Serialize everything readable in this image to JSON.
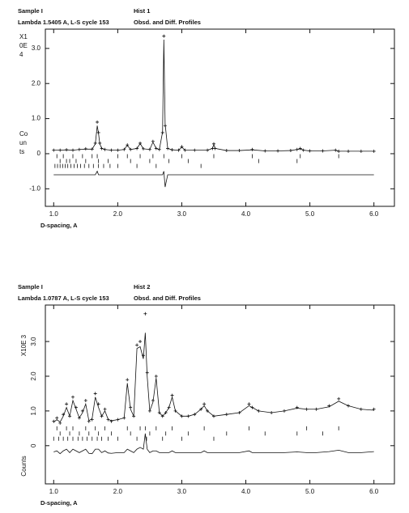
{
  "chart_data": [
    {
      "type": "rietveld",
      "sample": "Sample I",
      "hist": "Hist  1",
      "lambda": "Lambda 1.5405 A, L-S cycle  153",
      "title": "Obsd. and Diff. Profiles",
      "x_label": "D-spacing, A",
      "y_label": [
        "X1",
        "0E",
        "4"
      ],
      "y_label2": [
        "Co",
        "un",
        "ts"
      ],
      "y_label_rotated": false,
      "xlim": [
        0.87,
        6.32
      ],
      "ylim": [
        -1.5,
        3.55
      ],
      "xticks": [
        {
          "value": 1,
          "label": "1.0"
        },
        {
          "value": 2,
          "label": "2.0"
        },
        {
          "value": 3,
          "label": "3.0"
        },
        {
          "value": 4,
          "label": "4.0"
        },
        {
          "value": 5,
          "label": "5.0"
        },
        {
          "value": 6,
          "label": "6.0"
        }
      ],
      "yticks": [
        {
          "value": -1,
          "label": "-1.0"
        },
        0,
        {
          "value": 1,
          "label": "1.0"
        },
        {
          "value": 2,
          "label": "2.0"
        },
        {
          "value": 3,
          "label": "3.0"
        }
      ],
      "color": "#111111",
      "x": [
        1.0,
        1.1,
        1.2,
        1.3,
        1.4,
        1.5,
        1.6,
        1.65,
        1.68,
        1.7,
        1.72,
        1.75,
        1.8,
        1.9,
        2.0,
        2.1,
        2.15,
        2.2,
        2.3,
        2.35,
        2.4,
        2.5,
        2.55,
        2.6,
        2.65,
        2.7,
        2.72,
        2.74,
        2.78,
        2.85,
        2.95,
        3.0,
        3.05,
        3.2,
        3.4,
        3.48,
        3.5,
        3.52,
        3.7,
        3.9,
        4.1,
        4.3,
        4.5,
        4.7,
        4.8,
        4.85,
        4.9,
        5.0,
        5.2,
        5.4,
        5.45,
        5.6,
        5.8,
        6.0
      ],
      "series": [
        {
          "style": "plus",
          "values": [
            0.1,
            0.1,
            0.11,
            0.1,
            0.12,
            0.14,
            0.13,
            0.3,
            0.9,
            0.6,
            0.3,
            0.15,
            0.12,
            0.1,
            0.1,
            0.12,
            0.25,
            0.12,
            0.15,
            0.3,
            0.14,
            0.12,
            0.35,
            0.15,
            0.12,
            0.6,
            3.35,
            0.8,
            0.15,
            0.11,
            0.1,
            0.2,
            0.1,
            0.1,
            0.1,
            0.15,
            0.28,
            0.15,
            0.09,
            0.09,
            0.12,
            0.08,
            0.08,
            0.09,
            0.12,
            0.15,
            0.1,
            0.08,
            0.08,
            0.1,
            0.07,
            0.07,
            0.07,
            0.07
          ]
        },
        {
          "style": "line",
          "values": [
            0.1,
            0.1,
            0.11,
            0.1,
            0.12,
            0.13,
            0.13,
            0.28,
            0.8,
            0.58,
            0.28,
            0.15,
            0.12,
            0.1,
            0.1,
            0.12,
            0.24,
            0.12,
            0.15,
            0.29,
            0.14,
            0.12,
            0.33,
            0.15,
            0.12,
            0.62,
            3.25,
            0.85,
            0.15,
            0.11,
            0.1,
            0.19,
            0.1,
            0.1,
            0.1,
            0.15,
            0.27,
            0.15,
            0.09,
            0.09,
            0.11,
            0.08,
            0.08,
            0.09,
            0.12,
            0.14,
            0.1,
            0.08,
            0.08,
            0.1,
            0.07,
            0.07,
            0.07,
            0.07
          ]
        },
        {
          "style": "line",
          "values": [
            -0.6,
            -0.6,
            -0.6,
            -0.6,
            -0.6,
            -0.6,
            -0.6,
            -0.6,
            -0.5,
            -0.6,
            -0.6,
            -0.6,
            -0.6,
            -0.6,
            -0.6,
            -0.6,
            -0.6,
            -0.6,
            -0.6,
            -0.6,
            -0.6,
            -0.6,
            -0.6,
            -0.6,
            -0.6,
            -0.6,
            -0.5,
            -0.95,
            -0.6,
            -0.6,
            -0.6,
            -0.6,
            -0.6,
            -0.6,
            -0.6,
            -0.6,
            -0.6,
            -0.6,
            -0.6,
            -0.6,
            -0.6,
            -0.6,
            -0.6,
            -0.6,
            -0.6,
            -0.6,
            -0.6,
            -0.6,
            -0.6,
            -0.6,
            -0.6,
            -0.6,
            -0.6,
            -0.6
          ]
        }
      ],
      "reflections": [
        {
          "level": -0.07,
          "positions": [
            1.05,
            1.15,
            1.3,
            1.45,
            1.6,
            1.68,
            2.0,
            2.15,
            2.35,
            2.55,
            2.72,
            3.0,
            3.5,
            4.1,
            4.85,
            5.45
          ]
        },
        {
          "level": -0.21,
          "positions": [
            1.1,
            1.2,
            1.25,
            1.35,
            1.5,
            1.7,
            1.85,
            2.2,
            2.5,
            2.8,
            3.1,
            4.2,
            4.8
          ]
        },
        {
          "level": -0.35,
          "positions": [
            1.02,
            1.06,
            1.1,
            1.14,
            1.18,
            1.22,
            1.27,
            1.32,
            1.37,
            1.42,
            1.48,
            1.55,
            1.62,
            1.7,
            1.78,
            1.88,
            2.0,
            2.3,
            2.6,
            3.3
          ]
        }
      ]
    },
    {
      "type": "rietveld",
      "sample": "Sample I",
      "hist": "Hist  2",
      "lambda": "Lambda 1.0787 A, L-S cycle  153",
      "title": "Obsd. and Diff. Profiles",
      "x_label": "D-spacing, A",
      "y_label": [
        "X10E 3"
      ],
      "y_label2": [
        "Counts"
      ],
      "y_label_rotated": true,
      "xlim": [
        0.87,
        6.32
      ],
      "ylim": [
        -1.1,
        4.05
      ],
      "xticks": [
        {
          "value": 1,
          "label": "1.0"
        },
        {
          "value": 2,
          "label": "2.0"
        },
        {
          "value": 3,
          "label": "3.0"
        },
        {
          "value": 4,
          "label": "4.0"
        },
        {
          "value": 5,
          "label": "5.0"
        },
        {
          "value": 6,
          "label": "6.0"
        }
      ],
      "yticks": [
        0,
        {
          "value": 1,
          "label": "1.0"
        },
        {
          "value": 2,
          "label": "2.0"
        },
        {
          "value": 3,
          "label": "3.0"
        }
      ],
      "color": "#111111",
      "x": [
        1.0,
        1.05,
        1.1,
        1.15,
        1.2,
        1.25,
        1.3,
        1.35,
        1.4,
        1.45,
        1.5,
        1.55,
        1.6,
        1.65,
        1.7,
        1.75,
        1.8,
        1.85,
        1.9,
        2.0,
        2.1,
        2.15,
        2.2,
        2.25,
        2.3,
        2.35,
        2.4,
        2.43,
        2.46,
        2.5,
        2.55,
        2.6,
        2.65,
        2.7,
        2.75,
        2.8,
        2.85,
        2.9,
        3.0,
        3.1,
        3.2,
        3.3,
        3.35,
        3.4,
        3.5,
        3.7,
        3.9,
        4.05,
        4.1,
        4.2,
        4.4,
        4.6,
        4.8,
        4.95,
        5.1,
        5.3,
        5.45,
        5.6,
        5.8,
        6.0
      ],
      "series": [
        {
          "style": "plus",
          "values": [
            0.7,
            0.8,
            0.65,
            0.9,
            1.2,
            0.85,
            1.4,
            1.1,
            0.8,
            1.0,
            1.3,
            0.7,
            0.75,
            1.5,
            1.2,
            0.85,
            1.05,
            0.75,
            0.7,
            0.75,
            0.8,
            1.9,
            1.1,
            0.85,
            2.9,
            3.0,
            2.6,
            3.8,
            2.1,
            1.0,
            1.3,
            2.0,
            0.95,
            0.85,
            0.95,
            1.1,
            1.45,
            1.0,
            0.85,
            0.85,
            0.9,
            1.05,
            1.2,
            1.0,
            0.85,
            0.9,
            0.95,
            1.2,
            1.1,
            1.0,
            0.95,
            1.0,
            1.1,
            1.05,
            1.05,
            1.15,
            1.35,
            1.15,
            1.05,
            1.05
          ]
        },
        {
          "style": "line",
          "values": [
            0.68,
            0.75,
            0.68,
            0.85,
            1.1,
            0.85,
            1.3,
            1.05,
            0.8,
            0.95,
            1.2,
            0.72,
            0.78,
            1.4,
            1.1,
            0.85,
            1.0,
            0.76,
            0.72,
            0.75,
            0.8,
            1.8,
            1.05,
            0.85,
            2.8,
            2.85,
            2.5,
            3.25,
            2.0,
            1.0,
            1.25,
            1.95,
            0.95,
            0.85,
            0.95,
            1.1,
            1.4,
            1.0,
            0.85,
            0.85,
            0.9,
            1.05,
            1.15,
            1.0,
            0.85,
            0.9,
            0.95,
            1.15,
            1.1,
            1.0,
            0.95,
            1.0,
            1.08,
            1.05,
            1.05,
            1.12,
            1.28,
            1.15,
            1.05,
            1.02
          ]
        },
        {
          "style": "line",
          "values": [
            -0.18,
            -0.15,
            -0.23,
            -0.15,
            -0.1,
            -0.2,
            -0.1,
            -0.15,
            -0.2,
            -0.15,
            -0.1,
            -0.22,
            -0.23,
            -0.1,
            -0.1,
            -0.2,
            -0.15,
            -0.21,
            -0.22,
            -0.2,
            -0.2,
            -0.1,
            -0.15,
            -0.2,
            -0.1,
            -0.05,
            -0.1,
            0.35,
            -0.1,
            -0.2,
            -0.15,
            -0.15,
            -0.2,
            -0.2,
            -0.2,
            -0.2,
            -0.15,
            -0.2,
            -0.2,
            -0.2,
            -0.2,
            -0.2,
            -0.15,
            -0.2,
            -0.2,
            -0.2,
            -0.2,
            -0.15,
            -0.2,
            -0.2,
            -0.2,
            -0.2,
            -0.18,
            -0.2,
            -0.2,
            -0.17,
            -0.13,
            -0.2,
            -0.2,
            -0.17
          ]
        }
      ],
      "reflections": [
        {
          "level": 0.5,
          "positions": [
            1.05,
            1.2,
            1.3,
            1.5,
            1.65,
            1.8,
            2.15,
            2.35,
            2.43,
            2.6,
            2.85,
            3.35,
            4.05,
            4.95,
            5.45
          ]
        },
        {
          "level": 0.35,
          "positions": [
            1.1,
            1.25,
            1.4,
            1.55,
            1.7,
            1.9,
            2.2,
            2.5,
            2.75,
            3.1,
            3.7,
            4.3,
            4.8,
            5.2
          ]
        },
        {
          "level": 0.2,
          "positions": [
            1.0,
            1.08,
            1.15,
            1.22,
            1.3,
            1.38,
            1.45,
            1.52,
            1.6,
            1.68,
            1.75,
            1.85,
            2.0,
            2.3,
            2.45,
            2.7,
            3.0,
            3.5
          ]
        }
      ]
    }
  ]
}
